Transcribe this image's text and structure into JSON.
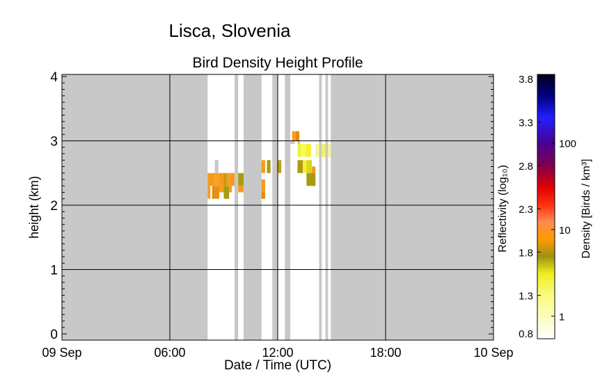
{
  "header": {
    "title": "Lisca, Slovenia"
  },
  "chart_data": {
    "type": "heatmap",
    "title": "Bird Density Height Profile",
    "xlabel": "Date / Time (UTC)",
    "ylabel": "height (km)",
    "x_ticks": [
      {
        "hour": 0,
        "label": "09 Sep"
      },
      {
        "hour": 6,
        "label": "06:00"
      },
      {
        "hour": 12,
        "label": "12:00"
      },
      {
        "hour": 18,
        "label": "18:00"
      },
      {
        "hour": 24,
        "label": "10 Sep"
      }
    ],
    "xlim_hours": [
      0,
      24
    ],
    "ylim": [
      0,
      4
    ],
    "y_ticks": [
      0,
      1,
      2,
      3,
      4
    ],
    "grid": true,
    "no_data_color": "#c8c8c8",
    "no_data_ranges_hours": [
      [
        0.0,
        8.1
      ],
      [
        9.6,
        9.8
      ],
      [
        10.1,
        11.1
      ],
      [
        11.7,
        12.0
      ],
      [
        12.4,
        12.7
      ],
      [
        14.3,
        14.45
      ],
      [
        14.65,
        14.8
      ],
      [
        14.95,
        24.0
      ]
    ],
    "no_data_cells": [
      {
        "h0": 8.5,
        "h1": 8.7,
        "y0": 2.5,
        "y1": 2.7
      },
      {
        "h0": 12.7,
        "h1": 12.95,
        "y0": 2.95,
        "y1": 3.0
      },
      {
        "h0": 13.1,
        "h1": 13.25,
        "y0": 2.95,
        "y1": 3.0
      }
    ],
    "cells": [
      {
        "h0": 8.1,
        "h1": 8.5,
        "y0": 2.3,
        "y1": 2.5,
        "color": "#f59a1d"
      },
      {
        "h0": 8.1,
        "h1": 8.25,
        "y0": 2.1,
        "y1": 2.3,
        "color": "#f59a1d"
      },
      {
        "h0": 8.35,
        "h1": 8.5,
        "y0": 2.1,
        "y1": 2.3,
        "color": "#e38a0c"
      },
      {
        "h0": 8.5,
        "h1": 8.75,
        "y0": 2.3,
        "y1": 2.5,
        "color": "#f7a326"
      },
      {
        "h0": 8.5,
        "h1": 8.75,
        "y0": 2.1,
        "y1": 2.3,
        "color": "#e8900f"
      },
      {
        "h0": 8.75,
        "h1": 9.0,
        "y0": 2.3,
        "y1": 2.5,
        "color": "#f59a1d"
      },
      {
        "h0": 8.75,
        "h1": 9.0,
        "y0": 2.2,
        "y1": 2.3,
        "color": "#f59a1d"
      },
      {
        "h0": 9.0,
        "h1": 9.15,
        "y0": 2.3,
        "y1": 2.5,
        "color": "#c49a10"
      },
      {
        "h0": 9.0,
        "h1": 9.3,
        "y0": 2.1,
        "y1": 2.3,
        "color": "#a89b10"
      },
      {
        "h0": 9.15,
        "h1": 9.3,
        "y0": 2.3,
        "y1": 2.5,
        "color": "#f59a1d"
      },
      {
        "h0": 9.3,
        "h1": 9.6,
        "y0": 2.3,
        "y1": 2.5,
        "color": "#f59a1d"
      },
      {
        "h0": 9.3,
        "h1": 9.45,
        "y0": 2.2,
        "y1": 2.3,
        "color": "#f59a1d"
      },
      {
        "h0": 9.8,
        "h1": 10.1,
        "y0": 2.3,
        "y1": 2.5,
        "color": "#ad9a10"
      },
      {
        "h0": 9.8,
        "h1": 10.1,
        "y0": 2.2,
        "y1": 2.3,
        "color": "#f59a1d"
      },
      {
        "h0": 11.1,
        "h1": 11.3,
        "y0": 2.5,
        "y1": 2.7,
        "color": "#f59a1d"
      },
      {
        "h0": 11.1,
        "h1": 11.3,
        "y0": 2.2,
        "y1": 2.4,
        "color": "#f59a1d"
      },
      {
        "h0": 11.1,
        "h1": 11.3,
        "y0": 2.1,
        "y1": 2.2,
        "color": "#e38a0c"
      },
      {
        "h0": 11.4,
        "h1": 11.6,
        "y0": 2.5,
        "y1": 2.7,
        "color": "#a89b10"
      },
      {
        "h0": 12.0,
        "h1": 12.2,
        "y0": 2.5,
        "y1": 2.7,
        "color": "#bfa015"
      },
      {
        "h0": 12.8,
        "h1": 13.0,
        "y0": 3.0,
        "y1": 3.15,
        "color": "#f59a1d"
      },
      {
        "h0": 13.0,
        "h1": 13.2,
        "y0": 3.0,
        "y1": 3.15,
        "color": "#e38a0c"
      },
      {
        "h0": 13.1,
        "h1": 13.3,
        "y0": 2.75,
        "y1": 2.95,
        "color": "#f4f230"
      },
      {
        "h0": 13.3,
        "h1": 13.55,
        "y0": 2.75,
        "y1": 2.95,
        "color": "#fafa60"
      },
      {
        "h0": 13.1,
        "h1": 13.4,
        "y0": 2.5,
        "y1": 2.7,
        "color": "#ad9a10"
      },
      {
        "h0": 13.4,
        "h1": 13.6,
        "y0": 2.5,
        "y1": 2.7,
        "color": "#f4f230"
      },
      {
        "h0": 13.55,
        "h1": 13.85,
        "y0": 2.75,
        "y1": 2.95,
        "color": "#f4f230"
      },
      {
        "h0": 13.6,
        "h1": 13.9,
        "y0": 2.5,
        "y1": 2.7,
        "color": "#d9d61c"
      },
      {
        "h0": 13.6,
        "h1": 14.1,
        "y0": 2.3,
        "y1": 2.5,
        "color": "#a89b10"
      },
      {
        "h0": 13.9,
        "h1": 14.1,
        "y0": 2.5,
        "y1": 2.6,
        "color": "#f59a1d"
      },
      {
        "h0": 14.1,
        "h1": 14.3,
        "y0": 2.75,
        "y1": 2.95,
        "color": "#f7f590"
      },
      {
        "h0": 14.45,
        "h1": 14.65,
        "y0": 2.75,
        "y1": 2.95,
        "color": "#f6f35a"
      },
      {
        "h0": 14.8,
        "h1": 14.95,
        "y0": 2.75,
        "y1": 2.95,
        "color": "#f7f590"
      }
    ],
    "colorbar": {
      "left_label": "Reflectivity (log₁₀)",
      "right_label": "Density [Birds / km³]",
      "range": [
        0.8,
        3.85
      ],
      "left_ticks": [
        "3.8",
        "3.3",
        "2.8",
        "2.3",
        "1.8",
        "1.3",
        "0.8"
      ],
      "right_ticks": [
        {
          "label": "100",
          "log10_reflectivity": 3.06
        },
        {
          "label": "10",
          "log10_reflectivity": 2.06
        },
        {
          "label": "1",
          "log10_reflectivity": 1.06
        }
      ],
      "stops": [
        {
          "v": 0.8,
          "color": "#ffffff"
        },
        {
          "v": 1.3,
          "color": "#fafa80"
        },
        {
          "v": 1.55,
          "color": "#f0ee20"
        },
        {
          "v": 1.75,
          "color": "#a09210"
        },
        {
          "v": 1.95,
          "color": "#ff9a00"
        },
        {
          "v": 2.15,
          "color": "#ff8a50"
        },
        {
          "v": 2.35,
          "color": "#ff3010"
        },
        {
          "v": 2.55,
          "color": "#e00000"
        },
        {
          "v": 2.8,
          "color": "#800050"
        },
        {
          "v": 3.05,
          "color": "#4a0090"
        },
        {
          "v": 3.35,
          "color": "#2020ff"
        },
        {
          "v": 3.6,
          "color": "#000080"
        },
        {
          "v": 3.85,
          "color": "#000020"
        }
      ]
    }
  }
}
